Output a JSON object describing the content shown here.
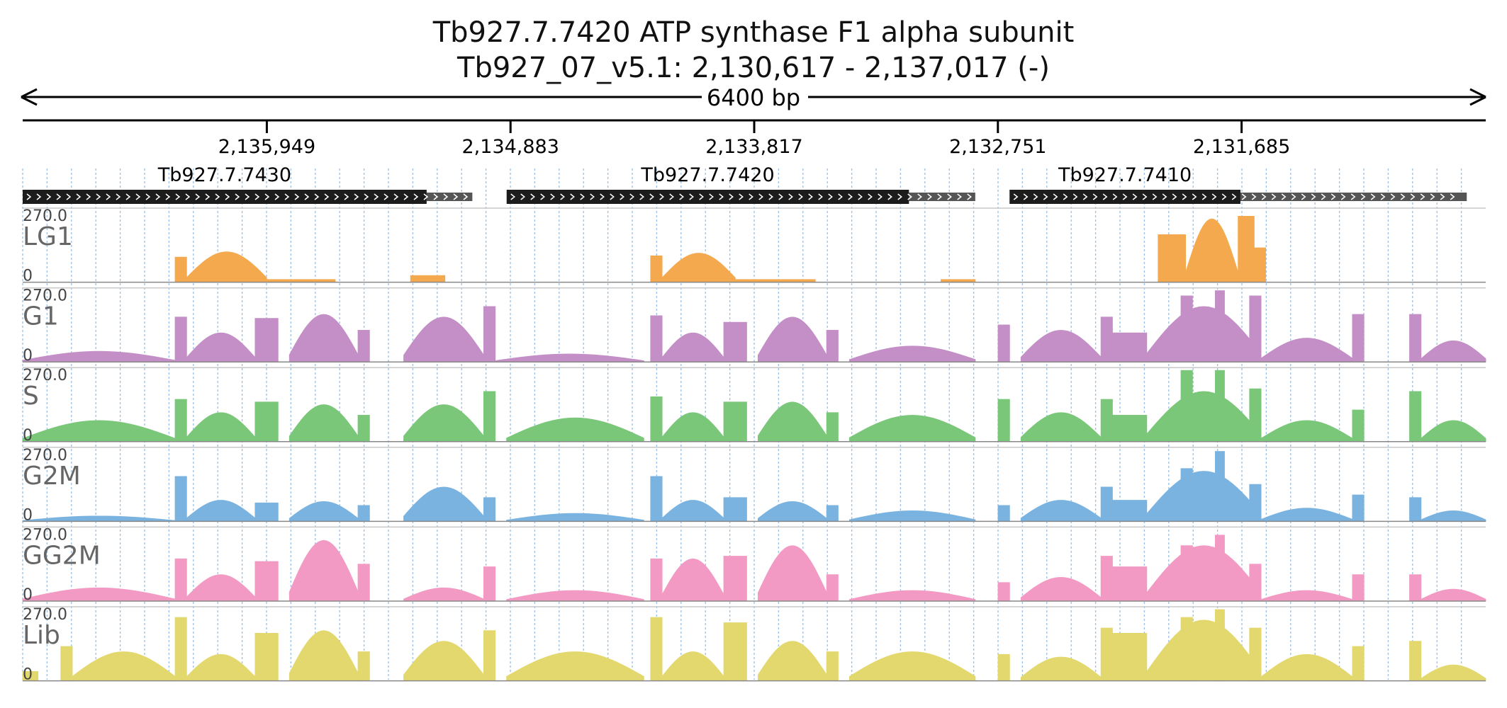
{
  "title": {
    "line1": "Tb927.7.7420  ATP synthase F1  alpha subunit",
    "line2": "Tb927_07_v5.1: 2,130,617 - 2,137,017 (-)"
  },
  "chart_data": {
    "type": "area",
    "region": {
      "chrom": "Tb927_07_v5.1",
      "start": 2130617,
      "end": 2137017,
      "strand": "-"
    },
    "span_label": "6400 bp",
    "ticks": [
      {
        "pos": 2135949,
        "label": "2,135,949"
      },
      {
        "pos": 2134883,
        "label": "2,134,883"
      },
      {
        "pos": 2133817,
        "label": "2,133,817"
      },
      {
        "pos": 2132751,
        "label": "2,132,751"
      },
      {
        "pos": 2131685,
        "label": "2,131,685"
      }
    ],
    "genes": [
      {
        "name": "Tb927.7.7430",
        "cds": [
          2137017,
          2135250
        ],
        "utr": [
          2135250,
          2135050
        ]
      },
      {
        "name": "Tb927.7.7420",
        "cds": [
          2134900,
          2133140
        ],
        "utr": [
          2133140,
          2132850
        ]
      },
      {
        "name": "Tb927.7.7410",
        "cds": [
          2132700,
          2131690
        ],
        "utr": [
          2131690,
          2130700
        ]
      }
    ],
    "ylim": [
      0,
      270
    ],
    "ymax_label": "270.0",
    "ymin_label": "0",
    "tracks": [
      {
        "name": "LG1",
        "color": "#f5a94e",
        "segments": [
          {
            "s": 2136350,
            "e": 2136300,
            "h": 95
          },
          {
            "s": 2136300,
            "e": 2135950,
            "h": 115,
            "shape": "hump"
          },
          {
            "s": 2135950,
            "e": 2135650,
            "h": 10
          },
          {
            "s": 2135320,
            "e": 2135170,
            "h": 25
          },
          {
            "s": 2134270,
            "e": 2134220,
            "h": 100
          },
          {
            "s": 2134220,
            "e": 2133900,
            "h": 110,
            "shape": "hump"
          },
          {
            "s": 2133900,
            "e": 2133550,
            "h": 10
          },
          {
            "s": 2133000,
            "e": 2132850,
            "h": 10
          },
          {
            "s": 2132050,
            "e": 2131930,
            "h": 180
          },
          {
            "s": 2131930,
            "e": 2131700,
            "h": 240,
            "shape": "hump"
          },
          {
            "s": 2131700,
            "e": 2131630,
            "h": 250
          },
          {
            "s": 2131630,
            "e": 2131580,
            "h": 130
          }
        ]
      },
      {
        "name": "G1",
        "color": "#c38fc6",
        "segments": [
          {
            "s": 2137017,
            "e": 2136350,
            "h": 40,
            "shape": "hump"
          },
          {
            "s": 2136350,
            "e": 2136300,
            "h": 170
          },
          {
            "s": 2136300,
            "e": 2136000,
            "h": 110,
            "shape": "hump"
          },
          {
            "s": 2136000,
            "e": 2135900,
            "h": 165
          },
          {
            "s": 2135850,
            "e": 2135550,
            "h": 180,
            "shape": "hump"
          },
          {
            "s": 2135550,
            "e": 2135500,
            "h": 120
          },
          {
            "s": 2135350,
            "e": 2135000,
            "h": 170,
            "shape": "hump"
          },
          {
            "s": 2135000,
            "e": 2134950,
            "h": 210
          },
          {
            "s": 2134950,
            "e": 2134300,
            "h": 30,
            "shape": "hump"
          },
          {
            "s": 2134270,
            "e": 2134220,
            "h": 175
          },
          {
            "s": 2134220,
            "e": 2133950,
            "h": 110,
            "shape": "hump"
          },
          {
            "s": 2133950,
            "e": 2133850,
            "h": 150
          },
          {
            "s": 2133800,
            "e": 2133500,
            "h": 170,
            "shape": "hump"
          },
          {
            "s": 2133500,
            "e": 2133450,
            "h": 120
          },
          {
            "s": 2133400,
            "e": 2132850,
            "h": 60,
            "shape": "hump"
          },
          {
            "s": 2132750,
            "e": 2132700,
            "h": 140
          },
          {
            "s": 2132650,
            "e": 2132300,
            "h": 120,
            "shape": "hump"
          },
          {
            "s": 2132300,
            "e": 2132250,
            "h": 170
          },
          {
            "s": 2132250,
            "e": 2132100,
            "h": 110
          },
          {
            "s": 2132100,
            "e": 2131600,
            "h": 210,
            "shape": "hump"
          },
          {
            "s": 2131950,
            "e": 2131900,
            "h": 250
          },
          {
            "s": 2131800,
            "e": 2131760,
            "h": 270
          },
          {
            "s": 2131650,
            "e": 2131600,
            "h": 250
          },
          {
            "s": 2131600,
            "e": 2131200,
            "h": 90,
            "shape": "hump"
          },
          {
            "s": 2131200,
            "e": 2131150,
            "h": 180
          },
          {
            "s": 2130950,
            "e": 2130900,
            "h": 180
          },
          {
            "s": 2130900,
            "e": 2130617,
            "h": 80,
            "shape": "hump"
          }
        ]
      },
      {
        "name": "S",
        "color": "#7ac77a",
        "segments": [
          {
            "s": 2137017,
            "e": 2136350,
            "h": 80,
            "shape": "hump"
          },
          {
            "s": 2136350,
            "e": 2136300,
            "h": 160
          },
          {
            "s": 2136300,
            "e": 2136000,
            "h": 110,
            "shape": "hump"
          },
          {
            "s": 2136000,
            "e": 2135900,
            "h": 150
          },
          {
            "s": 2135850,
            "e": 2135550,
            "h": 140,
            "shape": "hump"
          },
          {
            "s": 2135550,
            "e": 2135500,
            "h": 100
          },
          {
            "s": 2135350,
            "e": 2135000,
            "h": 140,
            "shape": "hump"
          },
          {
            "s": 2135000,
            "e": 2134950,
            "h": 190
          },
          {
            "s": 2134900,
            "e": 2134300,
            "h": 90,
            "shape": "hump"
          },
          {
            "s": 2134270,
            "e": 2134220,
            "h": 170
          },
          {
            "s": 2134220,
            "e": 2133950,
            "h": 110,
            "shape": "hump"
          },
          {
            "s": 2133950,
            "e": 2133850,
            "h": 150
          },
          {
            "s": 2133800,
            "e": 2133500,
            "h": 150,
            "shape": "hump"
          },
          {
            "s": 2133500,
            "e": 2133450,
            "h": 110
          },
          {
            "s": 2133400,
            "e": 2132850,
            "h": 100,
            "shape": "hump"
          },
          {
            "s": 2132750,
            "e": 2132700,
            "h": 160
          },
          {
            "s": 2132650,
            "e": 2132300,
            "h": 110,
            "shape": "hump"
          },
          {
            "s": 2132300,
            "e": 2132250,
            "h": 160
          },
          {
            "s": 2132250,
            "e": 2132100,
            "h": 100
          },
          {
            "s": 2132100,
            "e": 2131600,
            "h": 190,
            "shape": "hump"
          },
          {
            "s": 2131950,
            "e": 2131900,
            "h": 270
          },
          {
            "s": 2131800,
            "e": 2131760,
            "h": 270
          },
          {
            "s": 2131650,
            "e": 2131600,
            "h": 200
          },
          {
            "s": 2131600,
            "e": 2131200,
            "h": 80,
            "shape": "hump"
          },
          {
            "s": 2131200,
            "e": 2131150,
            "h": 120
          },
          {
            "s": 2130950,
            "e": 2130900,
            "h": 190
          },
          {
            "s": 2130900,
            "e": 2130617,
            "h": 80,
            "shape": "hump"
          }
        ]
      },
      {
        "name": "G2M",
        "color": "#7ab3e0",
        "segments": [
          {
            "s": 2137017,
            "e": 2136350,
            "h": 20,
            "shape": "hump"
          },
          {
            "s": 2136350,
            "e": 2136300,
            "h": 170
          },
          {
            "s": 2136300,
            "e": 2136000,
            "h": 80,
            "shape": "hump"
          },
          {
            "s": 2136000,
            "e": 2135900,
            "h": 70
          },
          {
            "s": 2135850,
            "e": 2135550,
            "h": 75,
            "shape": "hump"
          },
          {
            "s": 2135550,
            "e": 2135500,
            "h": 60
          },
          {
            "s": 2135350,
            "e": 2135000,
            "h": 130,
            "shape": "hump"
          },
          {
            "s": 2135000,
            "e": 2134950,
            "h": 90
          },
          {
            "s": 2134900,
            "e": 2134300,
            "h": 30,
            "shape": "hump"
          },
          {
            "s": 2134270,
            "e": 2134220,
            "h": 170
          },
          {
            "s": 2134220,
            "e": 2133950,
            "h": 80,
            "shape": "hump"
          },
          {
            "s": 2133950,
            "e": 2133850,
            "h": 90
          },
          {
            "s": 2133800,
            "e": 2133500,
            "h": 75,
            "shape": "hump"
          },
          {
            "s": 2133500,
            "e": 2133450,
            "h": 60
          },
          {
            "s": 2133400,
            "e": 2132850,
            "h": 40,
            "shape": "hump"
          },
          {
            "s": 2132750,
            "e": 2132700,
            "h": 60
          },
          {
            "s": 2132650,
            "e": 2132300,
            "h": 80,
            "shape": "hump"
          },
          {
            "s": 2132300,
            "e": 2132250,
            "h": 130
          },
          {
            "s": 2132250,
            "e": 2132100,
            "h": 80
          },
          {
            "s": 2132100,
            "e": 2131600,
            "h": 190,
            "shape": "hump"
          },
          {
            "s": 2131950,
            "e": 2131900,
            "h": 200
          },
          {
            "s": 2131800,
            "e": 2131760,
            "h": 265
          },
          {
            "s": 2131650,
            "e": 2131600,
            "h": 140
          },
          {
            "s": 2131600,
            "e": 2131200,
            "h": 50,
            "shape": "hump"
          },
          {
            "s": 2131200,
            "e": 2131150,
            "h": 100
          },
          {
            "s": 2130950,
            "e": 2130900,
            "h": 90
          },
          {
            "s": 2130900,
            "e": 2130617,
            "h": 40,
            "shape": "hump"
          }
        ]
      },
      {
        "name": "GG2M",
        "color": "#f29ac3",
        "segments": [
          {
            "s": 2137017,
            "e": 2136350,
            "h": 50,
            "shape": "hump"
          },
          {
            "s": 2136350,
            "e": 2136300,
            "h": 160
          },
          {
            "s": 2136300,
            "e": 2136000,
            "h": 100,
            "shape": "hump"
          },
          {
            "s": 2136000,
            "e": 2135900,
            "h": 150
          },
          {
            "s": 2135850,
            "e": 2135550,
            "h": 230,
            "shape": "hump"
          },
          {
            "s": 2135550,
            "e": 2135500,
            "h": 140
          },
          {
            "s": 2135350,
            "e": 2135000,
            "h": 50,
            "shape": "hump"
          },
          {
            "s": 2135000,
            "e": 2134950,
            "h": 130
          },
          {
            "s": 2134900,
            "e": 2134300,
            "h": 40,
            "shape": "hump"
          },
          {
            "s": 2134270,
            "e": 2134220,
            "h": 160
          },
          {
            "s": 2134220,
            "e": 2133950,
            "h": 160,
            "shape": "hump"
          },
          {
            "s": 2133950,
            "e": 2133850,
            "h": 170
          },
          {
            "s": 2133800,
            "e": 2133500,
            "h": 210,
            "shape": "hump"
          },
          {
            "s": 2133500,
            "e": 2133450,
            "h": 100
          },
          {
            "s": 2133400,
            "e": 2132850,
            "h": 40,
            "shape": "hump"
          },
          {
            "s": 2132750,
            "e": 2132700,
            "h": 70
          },
          {
            "s": 2132650,
            "e": 2132300,
            "h": 90,
            "shape": "hump"
          },
          {
            "s": 2132300,
            "e": 2132250,
            "h": 170
          },
          {
            "s": 2132250,
            "e": 2132100,
            "h": 130
          },
          {
            "s": 2132100,
            "e": 2131600,
            "h": 210,
            "shape": "hump"
          },
          {
            "s": 2131950,
            "e": 2131900,
            "h": 210
          },
          {
            "s": 2131800,
            "e": 2131760,
            "h": 250
          },
          {
            "s": 2131650,
            "e": 2131600,
            "h": 140
          },
          {
            "s": 2131600,
            "e": 2131200,
            "h": 40,
            "shape": "hump"
          },
          {
            "s": 2131200,
            "e": 2131150,
            "h": 100
          },
          {
            "s": 2130950,
            "e": 2130900,
            "h": 100
          },
          {
            "s": 2130900,
            "e": 2130617,
            "h": 45,
            "shape": "hump"
          }
        ]
      },
      {
        "name": "Lib",
        "color": "#e3d86e",
        "segments": [
          {
            "s": 2137017,
            "e": 2136950,
            "h": 35
          },
          {
            "s": 2136850,
            "e": 2136800,
            "h": 130
          },
          {
            "s": 2136800,
            "e": 2136350,
            "h": 110,
            "shape": "hump"
          },
          {
            "s": 2136350,
            "e": 2136300,
            "h": 240
          },
          {
            "s": 2136300,
            "e": 2136000,
            "h": 100,
            "shape": "hump"
          },
          {
            "s": 2136000,
            "e": 2135900,
            "h": 180
          },
          {
            "s": 2135850,
            "e": 2135550,
            "h": 190,
            "shape": "hump"
          },
          {
            "s": 2135550,
            "e": 2135500,
            "h": 110
          },
          {
            "s": 2135350,
            "e": 2135000,
            "h": 150,
            "shape": "hump"
          },
          {
            "s": 2135000,
            "e": 2134950,
            "h": 190
          },
          {
            "s": 2134900,
            "e": 2134300,
            "h": 110,
            "shape": "hump"
          },
          {
            "s": 2134270,
            "e": 2134220,
            "h": 240
          },
          {
            "s": 2134220,
            "e": 2133950,
            "h": 110,
            "shape": "hump"
          },
          {
            "s": 2133950,
            "e": 2133850,
            "h": 220
          },
          {
            "s": 2133800,
            "e": 2133500,
            "h": 150,
            "shape": "hump"
          },
          {
            "s": 2133500,
            "e": 2133450,
            "h": 110
          },
          {
            "s": 2133400,
            "e": 2132850,
            "h": 110,
            "shape": "hump"
          },
          {
            "s": 2132750,
            "e": 2132700,
            "h": 100
          },
          {
            "s": 2132650,
            "e": 2132300,
            "h": 90,
            "shape": "hump"
          },
          {
            "s": 2132300,
            "e": 2132250,
            "h": 200
          },
          {
            "s": 2132250,
            "e": 2132100,
            "h": 180
          },
          {
            "s": 2132100,
            "e": 2131600,
            "h": 230,
            "shape": "hump"
          },
          {
            "s": 2131950,
            "e": 2131900,
            "h": 240
          },
          {
            "s": 2131800,
            "e": 2131760,
            "h": 270
          },
          {
            "s": 2131650,
            "e": 2131600,
            "h": 200
          },
          {
            "s": 2131600,
            "e": 2131200,
            "h": 100,
            "shape": "hump"
          },
          {
            "s": 2131200,
            "e": 2131150,
            "h": 130
          },
          {
            "s": 2130950,
            "e": 2130900,
            "h": 150
          },
          {
            "s": 2130900,
            "e": 2130617,
            "h": 60,
            "shape": "hump"
          }
        ]
      }
    ]
  }
}
